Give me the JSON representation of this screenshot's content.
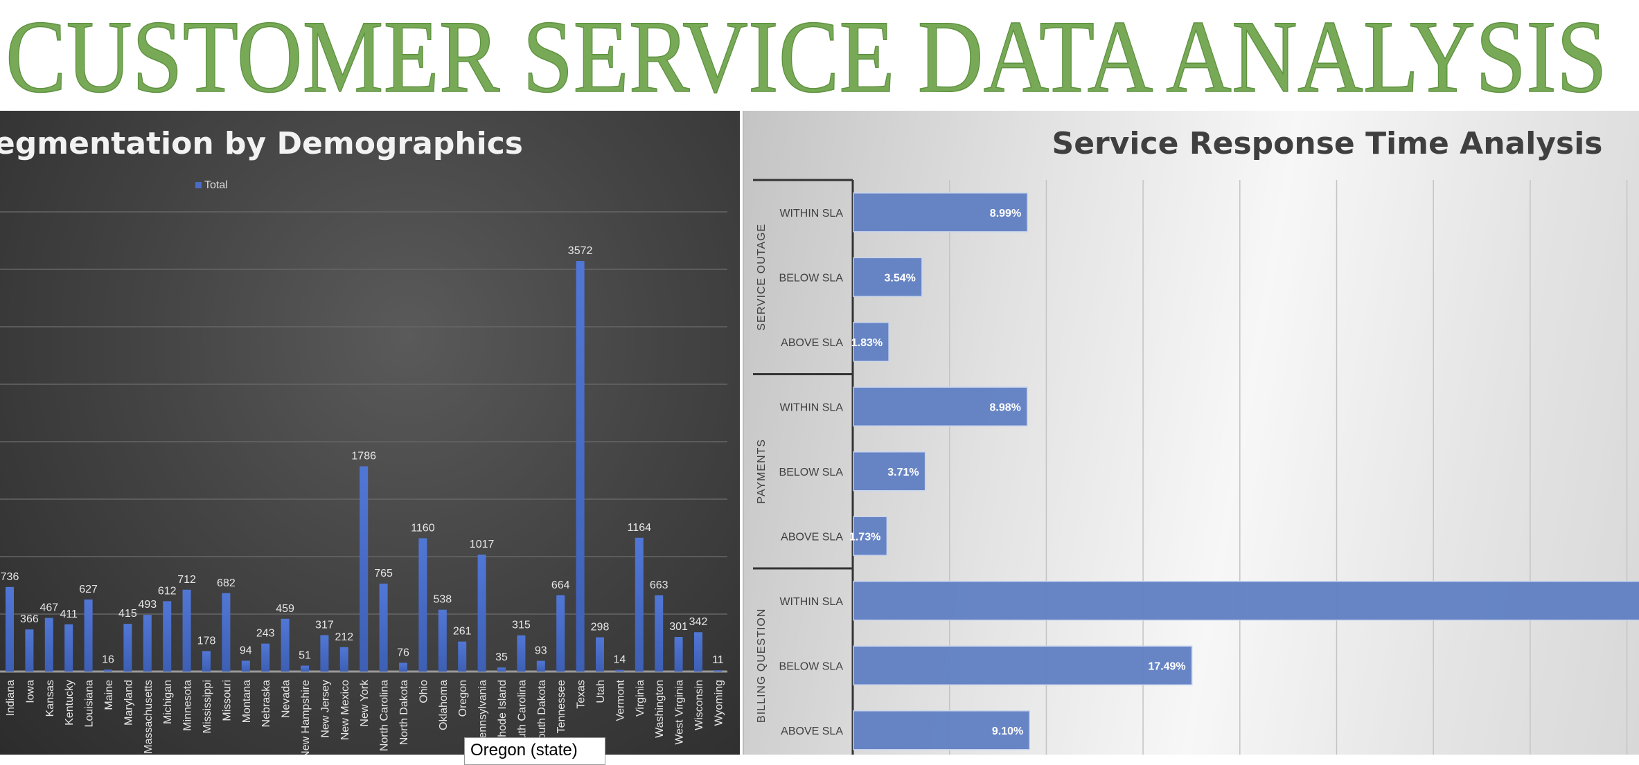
{
  "page_title": "CUSTOMER SERVICE DATA ANALYSIS",
  "title_color": "#77a956",
  "tooltip": "Oregon (state)",
  "chart_data": [
    {
      "type": "bar",
      "title": "ner Segmentation by Demographics",
      "legend": [
        "Total"
      ],
      "legend_position": "top",
      "grid": true,
      "ylim": [
        0,
        4000
      ],
      "bar_color": "#4a6cc6",
      "categories": [
        "Indiana",
        "Iowa",
        "Kansas",
        "Kentucky",
        "Louisiana",
        "Maine",
        "Maryland",
        "Massachusetts",
        "Michigan",
        "Minnesota",
        "Mississippi",
        "Missouri",
        "Montana",
        "Nebraska",
        "Nevada",
        "New Hampshire",
        "New Jersey",
        "New Mexico",
        "New York",
        "North Carolina",
        "North Dakota",
        "Ohio",
        "Oklahoma",
        "Oregon",
        "Pennsylvania",
        "Rhode Island",
        "South Carolina",
        "South Dakota",
        "Tennessee",
        "Texas",
        "Utah",
        "Vermont",
        "Virginia",
        "Washington",
        "West Virginia",
        "Wisconsin",
        "Wyoming"
      ],
      "series": [
        {
          "name": "Total",
          "values": [
            736,
            366,
            467,
            411,
            627,
            16,
            415,
            493,
            612,
            712,
            178,
            682,
            94,
            243,
            459,
            51,
            317,
            212,
            1786,
            765,
            76,
            1160,
            538,
            261,
            1017,
            35,
            315,
            93,
            664,
            3572,
            298,
            14,
            1164,
            663,
            301,
            342,
            11
          ]
        }
      ]
    },
    {
      "type": "bar",
      "orientation": "horizontal",
      "title": "Service Response Time Analysis",
      "grid": true,
      "xlim": [
        0,
        40
      ],
      "bar_color": "#6382c4",
      "groups": [
        {
          "name": "SERVICE OUTAGE",
          "items": [
            {
              "label": "WITHIN SLA",
              "value": 8.99,
              "data_label": "8.99%"
            },
            {
              "label": "BELOW SLA",
              "value": 3.54,
              "data_label": "3.54%"
            },
            {
              "label": "ABOVE SLA",
              "value": 1.83,
              "data_label": "1.83%"
            }
          ]
        },
        {
          "name": "PAYMENTS",
          "items": [
            {
              "label": "WITHIN SLA",
              "value": 8.98,
              "data_label": "8.98%"
            },
            {
              "label": "BELOW SLA",
              "value": 3.71,
              "data_label": "3.71%"
            },
            {
              "label": "ABOVE SLA",
              "value": 1.73,
              "data_label": "1.73%"
            }
          ]
        },
        {
          "name": "BILLING QUESTION",
          "items": [
            {
              "label": "WITHIN SLA",
              "value": null,
              "data_label": ""
            },
            {
              "label": "BELOW SLA",
              "value": 17.49,
              "data_label": "17.49%"
            },
            {
              "label": "ABOVE SLA",
              "value": 9.1,
              "data_label": "9.10%"
            }
          ]
        }
      ]
    }
  ]
}
